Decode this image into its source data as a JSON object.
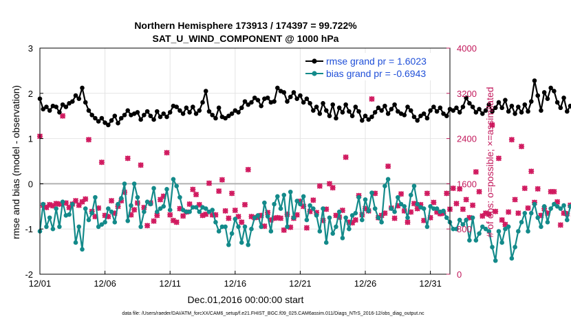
{
  "chart_data": {
    "type": "line",
    "title": "Northern Hemisphere 173913 / 174397 = 99.722%",
    "subtitle": "SAT_U_WIND_COMPONENT @ 1000 hPa",
    "xlabel": "Dec.01,2016 00:00:00 start",
    "ylabel": "rmse and bias (model - observation)",
    "ylabel_right": "# of obs: o=possible; ×=assimilated",
    "footnote": "data file: /Users/raeder/DAI/ATM_forcXX/CAM6_setup/f.e21.FHIST_BGC.f09_025.CAM6assim.011/Diags_NTrS_2016-12/obs_diag_output.nc",
    "xlim": [
      1,
      32.5
    ],
    "ylim": [
      -2,
      3
    ],
    "ylim_right": [
      0,
      4000
    ],
    "xticks": [
      1,
      6,
      11,
      16,
      21,
      26,
      31
    ],
    "xtick_labels": [
      "12/01",
      "12/06",
      "12/11",
      "12/16",
      "12/21",
      "12/26",
      "12/31"
    ],
    "yticks": [
      -2,
      -1,
      0,
      1,
      2,
      3
    ],
    "ytick_labels": [
      "-2",
      "-1",
      "0",
      "1",
      "2",
      "3"
    ],
    "yticks_right": [
      0,
      800,
      1600,
      2400,
      3200,
      4000
    ],
    "ytick_labels_right": [
      "0",
      "800",
      "1600",
      "2400",
      "3200",
      "4000"
    ],
    "zero_line": 0,
    "legend_position": "top-right",
    "x_start": 1,
    "x_step": 0.25,
    "series": [
      {
        "name": "rmse grand pr = 1.6023",
        "color": "#000000",
        "marker": "circle",
        "values": [
          1.88,
          1.65,
          1.7,
          1.62,
          1.72,
          1.7,
          1.58,
          1.75,
          1.7,
          1.78,
          1.82,
          1.95,
          1.88,
          2.12,
          1.8,
          1.62,
          1.52,
          1.45,
          1.38,
          1.45,
          1.35,
          1.3,
          1.4,
          1.5,
          1.34,
          1.45,
          1.52,
          1.62,
          1.52,
          1.55,
          1.58,
          1.42,
          1.52,
          1.6,
          1.5,
          1.42,
          1.6,
          1.48,
          1.55,
          1.48,
          1.58,
          1.72,
          1.7,
          1.62,
          1.55,
          1.68,
          1.58,
          1.7,
          1.55,
          1.62,
          1.8,
          2.05,
          1.6,
          1.52,
          1.45,
          1.68,
          1.48,
          1.45,
          1.5,
          1.55,
          1.62,
          1.58,
          1.68,
          1.82,
          1.75,
          1.8,
          1.9,
          1.85,
          1.72,
          1.88,
          1.9,
          1.8,
          1.82,
          2.12,
          2.05,
          2.02,
          1.82,
          1.92,
          2.02,
          1.88,
          1.95,
          1.8,
          1.88,
          1.78,
          1.62,
          1.7,
          1.55,
          1.78,
          1.62,
          1.5,
          1.75,
          1.45,
          1.68,
          1.58,
          1.75,
          1.6,
          1.5,
          1.7,
          1.6,
          1.4,
          1.5,
          1.42,
          1.48,
          1.58,
          1.68,
          1.62,
          1.72,
          1.55,
          1.65,
          1.75,
          1.6,
          1.55,
          1.52,
          1.7,
          1.62,
          1.48,
          1.4,
          1.5,
          1.55,
          1.45,
          1.62,
          1.7,
          1.6,
          1.68,
          1.55,
          1.5,
          1.65,
          1.62,
          1.68,
          1.58,
          1.7,
          1.9,
          1.78,
          1.7,
          1.58,
          1.65,
          1.55,
          1.62,
          1.75,
          1.6,
          1.68,
          1.8,
          1.68,
          1.85,
          1.6,
          1.72,
          1.55,
          1.7,
          1.58,
          1.75,
          1.6,
          1.82,
          2.28,
          1.95,
          1.62,
          2.02,
          1.88,
          2.12,
          2.05,
          1.8,
          1.68,
          1.9,
          1.6,
          1.72,
          1.55,
          1.68,
          1.45,
          1.38,
          1.4,
          1.45,
          1.35,
          1.4,
          1.38,
          1.45,
          1.4,
          1.5,
          1.42,
          1.52,
          1.48,
          1.62,
          1.52,
          1.48,
          1.75,
          1.62,
          1.65,
          1.62,
          1.7,
          1.72,
          1.7
        ]
      },
      {
        "name": "bias grand pr = -0.6943",
        "color": "#138a8a",
        "marker": "circle",
        "values": [
          -1.05,
          -0.45,
          -0.95,
          -0.75,
          -1.0,
          -0.55,
          -0.95,
          -0.4,
          -0.7,
          -0.68,
          -0.45,
          -1.3,
          -0.95,
          -1.45,
          -0.55,
          -0.8,
          -0.65,
          -0.3,
          -0.95,
          -0.9,
          -0.85,
          -0.55,
          -0.62,
          -0.85,
          -0.45,
          -0.32,
          0.0,
          -0.82,
          -0.48,
          0.0,
          -0.3,
          -0.95,
          -0.62,
          -0.4,
          -0.45,
          -0.1,
          -0.62,
          -0.55,
          -0.5,
          -0.12,
          -0.58,
          0.1,
          -0.05,
          -0.3,
          -0.58,
          -0.62,
          -0.62,
          -0.52,
          -0.52,
          -0.62,
          -0.52,
          -0.55,
          -0.62,
          -0.58,
          -0.85,
          -1.05,
          -0.95,
          -0.95,
          -1.35,
          -1.1,
          -0.78,
          -0.95,
          -1.3,
          -0.95,
          -1.35,
          -1.0,
          -0.75,
          -0.7,
          -0.95,
          -0.42,
          -0.72,
          -1.05,
          -0.45,
          -0.28,
          -0.55,
          -0.25,
          -0.95,
          -0.18,
          -0.75,
          -0.38,
          -0.45,
          -0.28,
          -0.8,
          -0.48,
          -0.55,
          -0.7,
          -1.05,
          -0.55,
          -1.3,
          -0.75,
          -1.1,
          -0.95,
          -0.62,
          -1.2,
          -0.75,
          -1.0,
          -0.7,
          -0.65,
          -0.3,
          -0.8,
          -0.35,
          -0.6,
          -0.2,
          -0.55,
          -0.75,
          -0.85,
          -0.05,
          0.1,
          -0.55,
          -0.62,
          -0.3,
          -0.45,
          -0.5,
          -0.75,
          -0.25,
          -0.05,
          -0.45,
          -0.52,
          -0.55,
          -0.95,
          -0.5,
          -0.55,
          -0.55,
          -0.62,
          -0.6,
          -0.75,
          -0.85,
          -1.0,
          -1.0,
          -0.8,
          -0.9,
          -0.8,
          -1.25,
          -0.75,
          -1.25,
          -1.1,
          -0.95,
          -1.0,
          -1.05,
          -1.4,
          -1.7,
          -1.05,
          -1.3,
          -1.0,
          -0.95,
          -1.65,
          -1.4,
          -1.05,
          -0.85,
          -0.65,
          -1.05,
          -0.65,
          -0.45,
          -0.75,
          -0.95,
          -0.5,
          -0.85,
          -0.55,
          -0.45,
          -0.5,
          -0.55,
          -0.48,
          -0.8,
          -0.5,
          -0.42,
          -0.75,
          -0.6,
          -0.3,
          -0.45,
          -0.25,
          -0.55,
          -0.75,
          -0.5,
          -0.65,
          -0.58,
          -0.72,
          -0.8,
          -0.7,
          -0.8,
          -0.95,
          -0.88,
          -0.8,
          -0.75,
          -0.85,
          -0.9,
          -1.12,
          -1.12,
          -1.12
        ]
      },
      {
        "name": "possible obs count",
        "axis": "right",
        "marker": "o",
        "values": [
          2440,
          1220,
          1180,
          1230,
          1210,
          1250,
          1240,
          2800,
          1260,
          1180,
          1240,
          1300,
          1220,
          1280,
          1330,
          2380,
          1110,
          1020,
          1170,
          1980,
          1040,
          1020,
          1300,
          1080,
          1200,
          1300,
          1450,
          2050,
          1050,
          1140,
          1260,
          1930,
          1180,
          860,
          1260,
          940,
          1040,
          1320,
          1380,
          2150,
          1050,
          950,
          920,
          1160,
          1030,
          1100,
          1240,
          1500,
          1410,
          1230,
          1040,
          1060,
          1610,
          1050,
          1050,
          1470,
          1670,
          1120,
          990,
          1430,
          1130,
          1020,
          920,
          1230,
          1850,
          1020,
          1000,
          1010,
          1040,
          850,
          1090,
          960,
          990,
          1000,
          990,
          780,
          1060,
          830,
          990,
          1050,
          1290,
          1200,
          820,
          1110,
          1310,
          1090,
          1560,
          950,
          1150,
          1600,
          1530,
          1040,
          1010,
          1130,
          2070,
          920,
          910,
          960,
          1390,
          1050,
          1160,
          1120,
          3100,
          1430,
          1000,
          1040,
          1080,
          1910,
          1170,
          990,
          1210,
          1420,
          1120,
          920,
          1100,
          1250,
          1160,
          1230,
          950,
          1430,
          1000,
          1270,
          1100,
          1070,
          1080,
          1430,
          1150,
          1520,
          1250,
          1510,
          1150,
          1320,
          1000,
          1220,
          1810,
          1460,
          1030,
          1080,
          1060,
          2640,
          1110,
          2050,
          960,
          880,
          1100,
          2380,
          1320,
          1080,
          2260,
          1520,
          1170,
          1820,
          1270,
          1510,
          1040,
          1160,
          1080,
          1460,
          1460,
          1280,
          870,
          1080,
          1070,
          1220,
          1030,
          1180,
          3230,
          1110,
          1450,
          1250,
          1600,
          1100,
          1320,
          1170,
          1130,
          1330,
          1520,
          1400,
          1570,
          910,
          1200,
          1530,
          1010,
          1260,
          2740,
          1350,
          1300,
          1290,
          1200,
          1190,
          1360,
          1350,
          1490
        ]
      },
      {
        "name": "assimilated obs count",
        "axis": "right",
        "marker": "x",
        "values": [
          2440,
          1220,
          1180,
          1230,
          1210,
          1250,
          1240,
          2800,
          1260,
          1180,
          1240,
          1300,
          1220,
          1280,
          1330,
          2380,
          1110,
          1020,
          1170,
          1980,
          1040,
          1020,
          1300,
          1080,
          1200,
          1300,
          1450,
          2050,
          1050,
          1140,
          1260,
          1930,
          1180,
          860,
          1260,
          940,
          1040,
          1320,
          1380,
          2150,
          1050,
          950,
          920,
          1160,
          1030,
          1100,
          1240,
          1500,
          1410,
          1230,
          1040,
          1060,
          1610,
          1050,
          1050,
          1470,
          1670,
          1120,
          990,
          1430,
          1130,
          1020,
          920,
          1230,
          1850,
          1020,
          1000,
          1010,
          1040,
          850,
          1090,
          960,
          990,
          1000,
          990,
          780,
          1060,
          830,
          990,
          1050,
          1290,
          1200,
          820,
          1110,
          1310,
          1090,
          1560,
          950,
          1150,
          1600,
          1530,
          1040,
          1010,
          1130,
          2070,
          920,
          910,
          960,
          1390,
          1050,
          1160,
          1120,
          3100,
          1430,
          1000,
          1040,
          1080,
          1910,
          1170,
          990,
          1210,
          1420,
          1120,
          920,
          1100,
          1250,
          1160,
          1230,
          950,
          1430,
          1000,
          1270,
          1100,
          1070,
          1080,
          1430,
          1150,
          1520,
          1250,
          1510,
          1150,
          1320,
          1000,
          1220,
          1810,
          1460,
          1030,
          1080,
          1060,
          2640,
          1110,
          2050,
          960,
          880,
          1100,
          2380,
          1320,
          1080,
          2260,
          1520,
          1170,
          1820,
          1270,
          1510,
          1040,
          1160,
          1080,
          1460,
          1460,
          1280,
          870,
          1080,
          1070,
          1220,
          1030,
          1180,
          3230,
          1110,
          1450,
          1250,
          1600,
          1100,
          1320,
          1170,
          1130,
          1330,
          1520,
          1400,
          1570,
          910,
          1200,
          1530,
          1010,
          1260,
          2740,
          1350,
          1300,
          1290,
          1200,
          1190,
          1360,
          1350,
          1490
        ]
      }
    ],
    "colors": {
      "rmse": "#000000",
      "bias": "#138a8a",
      "obs": "#d0185e",
      "right_axis": "#c2185b",
      "legend_text": "#1f4fd8",
      "zero_line": "#b0b0b0"
    }
  }
}
